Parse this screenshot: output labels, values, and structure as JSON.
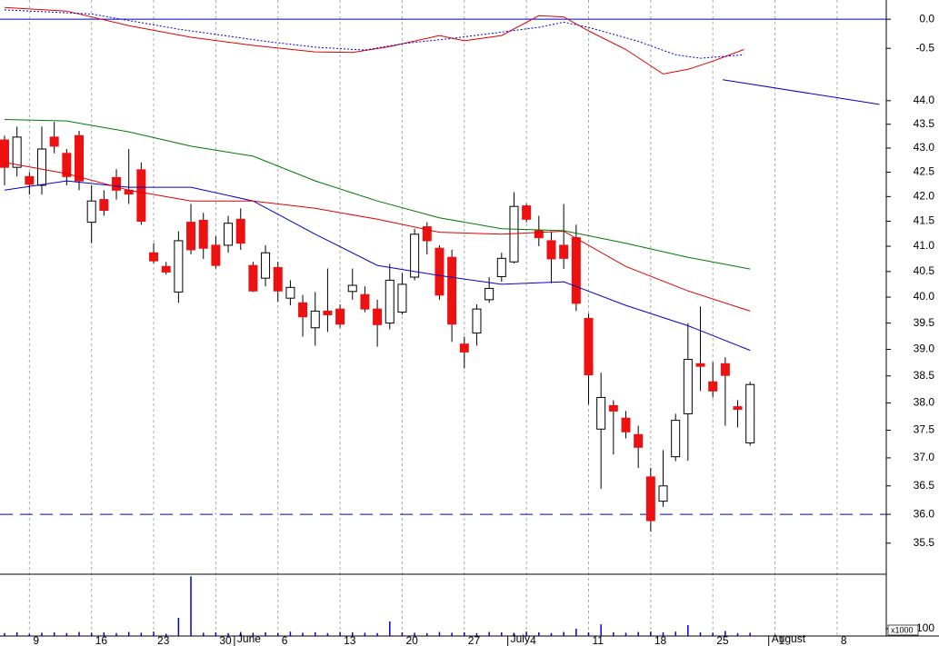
{
  "chart_data": [
    {
      "type": "line",
      "ylim": [
        -1.23,
        0.33
      ],
      "yticks": [
        {
          "value": 0,
          "label": "0.0"
        },
        {
          "value": -0.5,
          "label": "-0.5"
        }
      ],
      "reference_line": {
        "value": 0,
        "color": "#0000cc",
        "style": "solid"
      },
      "series": [
        {
          "color": "#e00000",
          "style": "solid",
          "x": [
            0,
            5,
            10,
            15,
            20,
            25,
            28,
            31,
            35,
            37,
            40,
            43,
            45,
            47,
            50,
            53,
            55,
            57,
            59.5
          ],
          "values": [
            0.2,
            0.14,
            -0.11,
            -0.31,
            -0.45,
            -0.56,
            -0.57,
            -0.47,
            -0.28,
            -0.37,
            -0.28,
            0.06,
            0.04,
            -0.2,
            -0.52,
            -0.94,
            -0.86,
            -0.72,
            -0.52
          ]
        },
        {
          "color": "#0000cc",
          "style": "dotted",
          "x": [
            0,
            7,
            14,
            21,
            25,
            29,
            32,
            36,
            40,
            43,
            45,
            47,
            51,
            54,
            56,
            59.5
          ],
          "values": [
            0.16,
            0.09,
            -0.17,
            -0.38,
            -0.48,
            -0.53,
            -0.42,
            -0.33,
            -0.22,
            -0.14,
            -0.05,
            -0.14,
            -0.38,
            -0.61,
            -0.67,
            -0.61
          ]
        }
      ]
    },
    {
      "type": "candlestick",
      "log": true,
      "ylim": [
        35.0,
        44.21
      ],
      "yticks": [
        {
          "value": 44,
          "label": "44.0"
        },
        {
          "value": 43.5,
          "label": "43.5"
        },
        {
          "value": 43,
          "label": "43.0"
        },
        {
          "value": 42.5,
          "label": "42.5"
        },
        {
          "value": 42,
          "label": "42.0"
        },
        {
          "value": 41.5,
          "label": "41.5"
        },
        {
          "value": 41,
          "label": "41.0"
        },
        {
          "value": 40.5,
          "label": "40.5"
        },
        {
          "value": 40,
          "label": "40.0"
        },
        {
          "value": 39.5,
          "label": "39.5"
        },
        {
          "value": 39,
          "label": "39.0"
        },
        {
          "value": 38.5,
          "label": "38.5"
        },
        {
          "value": 38,
          "label": "38.0"
        },
        {
          "value": 37.5,
          "label": "37.5"
        },
        {
          "value": 37,
          "label": "37.0"
        },
        {
          "value": 36.5,
          "label": "36.5"
        },
        {
          "value": 36,
          "label": "36.0"
        },
        {
          "value": 35.5,
          "label": "35.5"
        }
      ],
      "up_color": "#ffffff",
      "down_color": "#ee1111",
      "reference_line": {
        "value": 36,
        "color": "#0000cc",
        "style": "dashed"
      },
      "open": [
        43.17,
        42.6,
        42.41,
        42.23,
        43.23,
        42.89,
        43.26,
        41.48,
        41.94,
        42.39,
        42.13,
        42.55,
        40.87,
        40.6,
        40.1,
        41.48,
        41.52,
        41.02,
        41.02,
        41.54,
        40.62,
        40.37,
        40.58,
        39.98,
        39.89,
        39.41,
        39.73,
        39.77,
        40.11,
        40.05,
        39.77,
        39.5,
        39.71,
        40.39,
        41.39,
        40.96,
        40.78,
        39.1,
        39.31,
        39.95,
        40.4,
        40.69,
        41.81,
        41.31,
        41.11,
        41.02,
        41.17,
        39.59,
        37.52,
        37.95,
        37.72,
        37.42,
        36.66,
        36.23,
        37.02,
        37.8,
        38.73,
        38.39,
        38.73,
        37.93,
        37.27,
        null,
        null,
        null,
        null,
        null,
        null,
        null,
        null,
        null,
        null
      ],
      "high": [
        43.26,
        43.45,
        42.5,
        43.45,
        43.55,
        42.98,
        43.36,
        42.23,
        42.13,
        42.56,
        42.98,
        42.7,
        41.06,
        40.69,
        41.3,
        41.85,
        41.67,
        41.2,
        41.61,
        41.76,
        40.69,
        41.02,
        40.69,
        40.33,
        40.04,
        40.1,
        40.56,
        39.86,
        40.56,
        40.21,
        39.95,
        40.65,
        40.47,
        41.35,
        41.48,
        41.02,
        40.93,
        39.24,
        39.86,
        40.39,
        40.87,
        42.09,
        41.85,
        41.61,
        41.3,
        41.85,
        41.43,
        39.68,
        38.56,
        38.05,
        37.85,
        37.58,
        36.82,
        37.14,
        37.8,
        39.5,
        39.82,
        38.76,
        38.85,
        38.05,
        38.39,
        null,
        null,
        null,
        null,
        null,
        null,
        null,
        null,
        null,
        null
      ],
      "low": [
        42.23,
        42.41,
        42.04,
        42.04,
        42.89,
        42.23,
        42.13,
        41.06,
        41.61,
        41.94,
        41.85,
        41.43,
        40.66,
        40.44,
        39.89,
        40.84,
        40.75,
        40.56,
        40.87,
        40.93,
        40.1,
        40.21,
        39.91,
        39.84,
        39.24,
        39.07,
        39.33,
        39.41,
        39.95,
        39.71,
        39.05,
        39.38,
        39.66,
        40.33,
        40.84,
        39.95,
        39.14,
        38.64,
        39.07,
        39.89,
        40.3,
        40.66,
        41.48,
        41.0,
        40.27,
        40.55,
        39.73,
        37.97,
        36.45,
        37.06,
        37.35,
        36.82,
        35.7,
        36.13,
        36.94,
        36.95,
        38.22,
        38.1,
        37.58,
        37.55,
        37.22,
        null,
        null,
        null,
        null,
        null,
        null,
        null,
        null,
        null,
        null
      ],
      "close": [
        42.6,
        43.23,
        42.25,
        42.98,
        43.04,
        42.41,
        42.32,
        41.91,
        41.72,
        42.13,
        42.05,
        41.5,
        40.71,
        40.49,
        41.11,
        40.93,
        40.96,
        40.62,
        41.46,
        41.06,
        40.12,
        40.87,
        40.12,
        40.19,
        39.62,
        39.73,
        39.66,
        39.48,
        40.23,
        39.77,
        39.47,
        40.33,
        40.25,
        41.24,
        41.11,
        40.04,
        39.48,
        38.95,
        39.77,
        40.17,
        40.76,
        41.8,
        41.54,
        41.17,
        40.75,
        40.76,
        39.88,
        38.52,
        38.1,
        37.85,
        37.47,
        37.19,
        35.89,
        36.5,
        37.68,
        38.81,
        38.68,
        38.22,
        38.51,
        37.88,
        38.34,
        null,
        null,
        null,
        null,
        null,
        null,
        null,
        null,
        null,
        null
      ],
      "series": [
        {
          "color": "#0000cc",
          "style": "solid",
          "x": [
            0,
            5,
            10,
            15,
            20,
            25,
            30,
            35,
            40,
            45,
            50,
            55,
            60
          ],
          "values": [
            42.13,
            42.32,
            42.19,
            42.19,
            41.91,
            41.24,
            40.62,
            40.42,
            40.25,
            40.3,
            39.84,
            39.45,
            38.98
          ]
        },
        {
          "color": "#dd0000",
          "style": "solid",
          "x": [
            0,
            5,
            10,
            15,
            20,
            25,
            30,
            35,
            40,
            45,
            50,
            55,
            60
          ],
          "values": [
            42.7,
            42.47,
            42.13,
            41.91,
            41.91,
            41.76,
            41.54,
            41.28,
            41.24,
            41.3,
            40.6,
            40.12,
            39.73
          ]
        },
        {
          "color": "#007700",
          "style": "solid",
          "x": [
            0,
            5,
            10,
            15,
            20,
            25,
            30,
            35,
            40,
            45,
            50,
            55,
            60
          ],
          "values": [
            43.6,
            43.57,
            43.34,
            43.04,
            42.83,
            42.32,
            41.91,
            41.57,
            41.35,
            41.31,
            41.06,
            40.78,
            40.55
          ]
        },
        {
          "color": "#0000cc",
          "style": "solid",
          "x": [
            57.8,
            70.4
          ],
          "values": [
            44.45,
            43.92
          ]
        }
      ]
    },
    {
      "type": "bar",
      "ylim": [
        0,
        850
      ],
      "color": "#0000cc",
      "yticks": [
        {
          "value": 100,
          "label": "100"
        }
      ],
      "unit_label": "x1000",
      "values": [
        40,
        50,
        30,
        45,
        50,
        40,
        55,
        45,
        50,
        40,
        55,
        45,
        60,
        30,
        250,
        820,
        45,
        50,
        40,
        55,
        45,
        50,
        40,
        60,
        45,
        50,
        40,
        55,
        50,
        45,
        40,
        200,
        50,
        45,
        40,
        55,
        45,
        50,
        40,
        55,
        50,
        45,
        60,
        50,
        40,
        55,
        100,
        50,
        160,
        50,
        45,
        55,
        60,
        50,
        60,
        150,
        50,
        45,
        70,
        40,
        45,
        null,
        null,
        null,
        null,
        null,
        null,
        null,
        null,
        null,
        null
      ],
      "categories": [
        null,
        null,
        "9",
        null,
        null,
        null,
        null,
        "16",
        null,
        null,
        null,
        null,
        "23",
        null,
        null,
        null,
        null,
        "30",
        null,
        null,
        null,
        null,
        "6",
        null,
        null,
        null,
        null,
        "13",
        null,
        null,
        null,
        null,
        "20",
        null,
        null,
        null,
        null,
        "27",
        null,
        null,
        null,
        null,
        "4",
        null,
        null,
        null,
        null,
        "11",
        null,
        null,
        null,
        null,
        "18",
        null,
        null,
        null,
        null,
        "25",
        null,
        null,
        null,
        null,
        "1",
        null,
        null,
        null,
        null,
        "8",
        null,
        null,
        null
      ],
      "month_categories": [
        null,
        null,
        null,
        null,
        null,
        null,
        null,
        null,
        null,
        null,
        null,
        null,
        null,
        null,
        null,
        null,
        null,
        null,
        null,
        "June",
        null,
        null,
        null,
        null,
        null,
        null,
        null,
        null,
        null,
        null,
        null,
        null,
        null,
        null,
        null,
        null,
        null,
        null,
        null,
        null,
        null,
        "July",
        null,
        null,
        null,
        null,
        null,
        null,
        null,
        null,
        null,
        null,
        null,
        null,
        null,
        null,
        null,
        null,
        null,
        null,
        null,
        null,
        "August",
        null,
        null,
        null,
        null,
        null,
        null,
        null,
        null
      ]
    }
  ]
}
